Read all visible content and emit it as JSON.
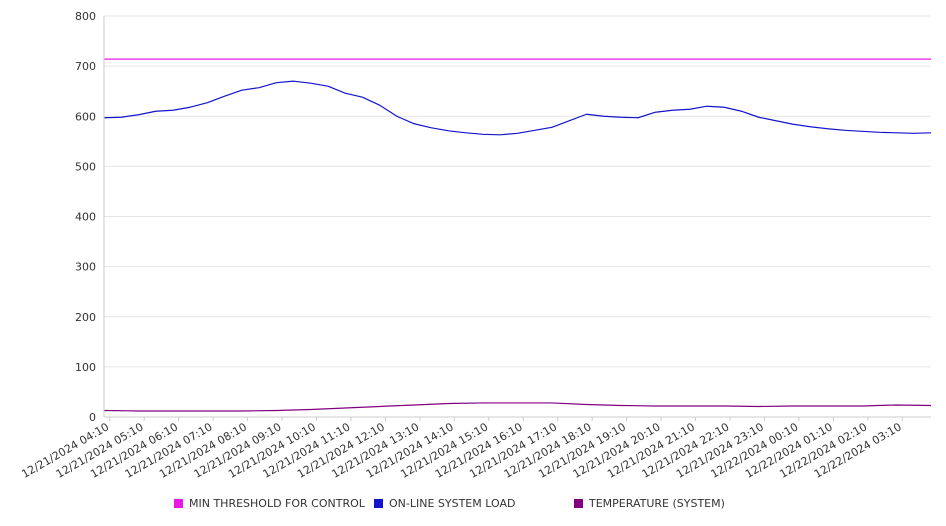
{
  "chart_data": {
    "type": "line",
    "title": "",
    "xlabel": "",
    "ylabel": "",
    "ylim": [
      0,
      800
    ],
    "yticks": [
      0,
      100,
      200,
      300,
      400,
      500,
      600,
      700,
      800
    ],
    "grid": true,
    "legend_position": "bottom",
    "x_tick_labels": [
      "12/21/2024 04:10",
      "12/21/2024 05:10",
      "12/21/2024 06:10",
      "12/21/2024 07:10",
      "12/21/2024 08:10",
      "12/21/2024 09:10",
      "12/21/2024 10:10",
      "12/21/2024 11:10",
      "12/21/2024 12:10",
      "12/21/2024 13:10",
      "12/21/2024 14:10",
      "12/21/2024 15:10",
      "12/21/2024 16:10",
      "12/21/2024 17:10",
      "12/21/2024 18:10",
      "12/21/2024 19:10",
      "12/21/2024 20:10",
      "12/21/2024 21:10",
      "12/21/2024 22:10",
      "12/21/2024 23:10",
      "12/22/2024 00:10",
      "12/22/2024 01:10",
      "12/22/2024 02:10",
      "12/22/2024 03:10"
    ],
    "x_start_tick": "12/21/2024 04:10",
    "x_end": "12/22/2024 04:00",
    "series": [
      {
        "name": "MIN THRESHOLD FOR CONTROL",
        "color": "#e619e6",
        "x": [
          "12/21/2024 04:00",
          "12/22/2024 04:00"
        ],
        "values": [
          714,
          714
        ]
      },
      {
        "name": "ON-LINE SYSTEM LOAD",
        "color": "#1414cc",
        "x": [
          "12/21/2024 04:00",
          "12/21/2024 04:30",
          "12/21/2024 05:00",
          "12/21/2024 05:30",
          "12/21/2024 06:00",
          "12/21/2024 06:30",
          "12/21/2024 07:00",
          "12/21/2024 07:30",
          "12/21/2024 08:00",
          "12/21/2024 08:30",
          "12/21/2024 09:00",
          "12/21/2024 09:30",
          "12/21/2024 10:00",
          "12/21/2024 10:30",
          "12/21/2024 11:00",
          "12/21/2024 11:30",
          "12/21/2024 12:00",
          "12/21/2024 12:30",
          "12/21/2024 13:00",
          "12/21/2024 13:30",
          "12/21/2024 14:00",
          "12/21/2024 14:30",
          "12/21/2024 15:00",
          "12/21/2024 15:30",
          "12/21/2024 16:00",
          "12/21/2024 16:30",
          "12/21/2024 17:00",
          "12/21/2024 17:30",
          "12/21/2024 18:00",
          "12/21/2024 18:30",
          "12/21/2024 19:00",
          "12/21/2024 19:30",
          "12/21/2024 20:00",
          "12/21/2024 20:30",
          "12/21/2024 21:00",
          "12/21/2024 21:30",
          "12/21/2024 22:00",
          "12/21/2024 22:30",
          "12/21/2024 23:00",
          "12/21/2024 23:30",
          "12/22/2024 00:00",
          "12/22/2024 00:30",
          "12/22/2024 01:00",
          "12/22/2024 01:30",
          "12/22/2024 02:00",
          "12/22/2024 02:30",
          "12/22/2024 03:00",
          "12/22/2024 03:30",
          "12/22/2024 04:00"
        ],
        "values": [
          597,
          598,
          603,
          610,
          612,
          618,
          627,
          640,
          652,
          657,
          667,
          670,
          666,
          660,
          646,
          638,
          622,
          600,
          585,
          577,
          571,
          567,
          564,
          563,
          566,
          572,
          578,
          591,
          604,
          600,
          598,
          597,
          608,
          612,
          614,
          620,
          618,
          610,
          598,
          591,
          584,
          579,
          575,
          572,
          570,
          568,
          567,
          566,
          567
        ]
      },
      {
        "name": "TEMPERATURE (SYSTEM)",
        "color": "#800080",
        "x": [
          "12/21/2024 04:00",
          "12/21/2024 05:00",
          "12/21/2024 06:00",
          "12/21/2024 07:00",
          "12/21/2024 08:00",
          "12/21/2024 09:00",
          "12/21/2024 10:00",
          "12/21/2024 11:00",
          "12/21/2024 12:00",
          "12/21/2024 13:00",
          "12/21/2024 14:00",
          "12/21/2024 15:00",
          "12/21/2024 16:00",
          "12/21/2024 17:00",
          "12/21/2024 18:00",
          "12/21/2024 19:00",
          "12/21/2024 20:00",
          "12/21/2024 21:00",
          "12/21/2024 22:00",
          "12/21/2024 23:00",
          "12/22/2024 00:00",
          "12/22/2024 01:00",
          "12/22/2024 02:00",
          "12/22/2024 03:00",
          "12/22/2024 04:00"
        ],
        "values": [
          13,
          12,
          12,
          12,
          12,
          13,
          15,
          18,
          21,
          24,
          27,
          28,
          28,
          28,
          25,
          23,
          22,
          22,
          22,
          21,
          22,
          22,
          22,
          24,
          23
        ]
      }
    ]
  }
}
